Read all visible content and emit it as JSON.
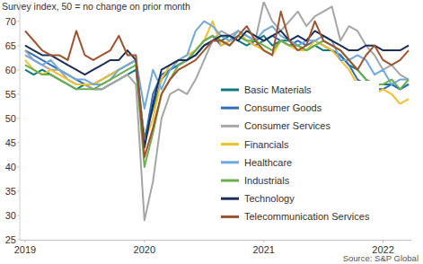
{
  "chart_data": {
    "type": "line",
    "subtitle": "Survey index, 50 = no change on prior month",
    "source": "Source: S&P Global",
    "categories": [
      "2019",
      null,
      null,
      null,
      null,
      null,
      null,
      null,
      null,
      null,
      null,
      null,
      null,
      null,
      "2020",
      null,
      null,
      null,
      null,
      null,
      null,
      null,
      null,
      null,
      null,
      null,
      null,
      null,
      "2021",
      null,
      null,
      null,
      null,
      null,
      null,
      null,
      null,
      null,
      null,
      null,
      null,
      null,
      "2022",
      null,
      null,
      null
    ],
    "ylim": [
      25,
      74
    ],
    "yticks": [
      25,
      30,
      35,
      40,
      45,
      50,
      55,
      60,
      65,
      70
    ],
    "grid": false,
    "legend": "right",
    "series": [
      {
        "name": "Basic Materials",
        "color": "#0f7a7e",
        "values": [
          60,
          59,
          60,
          59,
          58,
          57,
          56,
          57,
          56,
          56,
          57,
          58,
          59,
          60,
          46,
          52,
          58,
          60,
          61,
          62,
          63,
          65,
          66,
          66,
          67,
          66,
          65,
          66,
          67,
          65,
          66,
          66,
          65,
          64,
          65,
          64,
          64,
          63,
          61,
          60,
          58,
          57,
          57,
          57,
          56,
          57
        ]
      },
      {
        "name": "Consumer Goods",
        "color": "#2f6eba",
        "values": [
          64,
          63,
          62,
          61,
          60,
          59,
          58,
          57,
          57,
          58,
          59,
          60,
          61,
          62,
          45,
          55,
          59,
          60,
          61,
          62,
          64,
          66,
          67,
          65,
          66,
          67,
          66,
          65,
          66,
          67,
          66,
          65,
          66,
          65,
          66,
          65,
          64,
          63,
          61,
          58,
          57,
          56,
          56,
          57,
          56,
          57
        ]
      },
      {
        "name": "Consumer Services",
        "color": "#a5a5a5",
        "values": [
          64,
          62,
          61,
          60,
          60,
          58,
          57,
          57,
          56,
          56,
          57,
          58,
          59,
          57,
          29,
          37,
          50,
          55,
          56,
          55,
          58,
          62,
          66,
          68,
          67,
          68,
          67,
          66,
          74,
          70,
          68,
          70,
          72,
          69,
          71,
          72,
          73,
          66,
          69,
          68,
          65,
          63,
          60,
          61,
          59,
          58
        ]
      },
      {
        "name": "Financials",
        "color": "#f2c02b",
        "values": [
          62,
          60,
          59,
          60,
          59,
          58,
          57,
          57,
          57,
          58,
          59,
          60,
          61,
          62,
          45,
          50,
          58,
          61,
          62,
          63,
          64,
          66,
          70,
          65,
          66,
          68,
          66,
          65,
          64,
          63,
          66,
          65,
          64,
          64,
          66,
          65,
          64,
          62,
          60,
          57,
          56,
          55,
          56,
          55,
          53,
          54
        ]
      },
      {
        "name": "Healthcare",
        "color": "#6fa8dc",
        "values": [
          63,
          62,
          61,
          62,
          60,
          59,
          58,
          58,
          57,
          57,
          58,
          60,
          61,
          62,
          52,
          60,
          56,
          60,
          62,
          63,
          68,
          70,
          69,
          67,
          66,
          68,
          67,
          66,
          68,
          69,
          67,
          66,
          65,
          66,
          66,
          67,
          66,
          62,
          62,
          63,
          62,
          59,
          60,
          57,
          58,
          58
        ]
      },
      {
        "name": "Industrials",
        "color": "#6ab04c",
        "values": [
          61,
          60,
          59,
          59,
          58,
          57,
          56,
          56,
          56,
          57,
          58,
          59,
          60,
          61,
          40,
          47,
          55,
          58,
          61,
          62,
          64,
          66,
          67,
          66,
          65,
          67,
          66,
          66,
          65,
          64,
          66,
          65,
          65,
          64,
          65,
          66,
          65,
          64,
          62,
          60,
          58,
          57,
          57,
          58,
          56,
          58
        ]
      },
      {
        "name": "Technology",
        "color": "#1c2f5a",
        "values": [
          65,
          64,
          63,
          63,
          62,
          61,
          60,
          59,
          60,
          61,
          62,
          62,
          64,
          62,
          44,
          53,
          60,
          61,
          62,
          62,
          63,
          65,
          66,
          67,
          67,
          66,
          68,
          67,
          66,
          67,
          68,
          66,
          67,
          66,
          68,
          67,
          66,
          65,
          64,
          64,
          65,
          65,
          64,
          64,
          64,
          65
        ]
      },
      {
        "name": "Telecommunication Services",
        "color": "#a0522d",
        "values": [
          68,
          66,
          64,
          63,
          63,
          62,
          68,
          63,
          62,
          63,
          64,
          67,
          63,
          63,
          42,
          48,
          55,
          58,
          60,
          61,
          62,
          64,
          66,
          66,
          65,
          67,
          69,
          66,
          64,
          63,
          72,
          66,
          64,
          65,
          70,
          66,
          65,
          64,
          62,
          60,
          63,
          65,
          62,
          61,
          62,
          64
        ]
      }
    ]
  }
}
